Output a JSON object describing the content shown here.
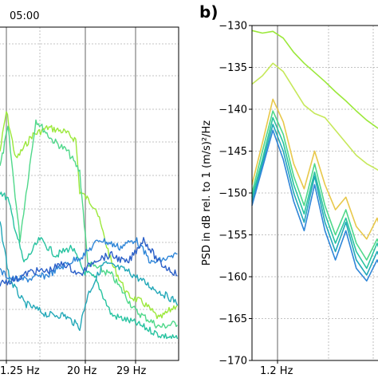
{
  "chart_data": [
    {
      "panel": "a",
      "type": "line",
      "title": "05:00",
      "xlabel": "",
      "ylabel": "",
      "x_tick_labels": [
        "1.25 Hz",
        "20 Hz",
        "29 Hz"
      ],
      "x_vlines": [
        "1.25 Hz",
        "20 Hz",
        "29 Hz"
      ],
      "grid": true,
      "series_colors": [
        "#9be83a",
        "#4fd88a",
        "#27c3a0",
        "#22a8b8",
        "#2f86d8",
        "#2a5fc8"
      ]
    },
    {
      "panel": "b",
      "type": "line",
      "title": "",
      "panel_label": "b)",
      "xlabel": "",
      "ylabel": "PSD in dB rel. to 1 (m/s)²/Hz",
      "ylim": [
        -170,
        -130
      ],
      "y_ticks": [
        -130,
        -135,
        -140,
        -145,
        -150,
        -155,
        -160,
        -165,
        -170
      ],
      "x_tick_labels": [
        "1.2 Hz"
      ],
      "x_vlines": [
        "1.2 Hz"
      ],
      "grid": true,
      "series": [
        {
          "color": "#9be83a",
          "values": [
            -130.6,
            -130.9,
            -130.7,
            -131.5,
            -133.2,
            -134.5,
            -135.6,
            -136.7,
            -137.9,
            -139.0,
            -140.2,
            -141.3,
            -142.2,
            -143.0
          ]
        },
        {
          "color": "#c6e85a",
          "values": [
            -137.0,
            -136.0,
            -134.5,
            -135.5,
            -137.5,
            -139.5,
            -140.5,
            -141.0,
            -142.5,
            -144.0,
            -145.5,
            -146.5,
            -147.2,
            -148.0
          ]
        },
        {
          "color": "#e8c84a",
          "values": [
            -149.0,
            -144.0,
            -138.8,
            -141.5,
            -146.5,
            -149.5,
            -145.0,
            -149.0,
            -152.0,
            -150.5,
            -154.0,
            -155.5,
            -153.0,
            -157.0
          ]
        },
        {
          "color": "#4fd88a",
          "values": [
            -150.0,
            -145.0,
            -140.2,
            -143.0,
            -148.0,
            -151.5,
            -146.5,
            -151.5,
            -155.0,
            -152.0,
            -156.0,
            -158.0,
            -155.5,
            -158.5
          ]
        },
        {
          "color": "#27c3a0",
          "values": [
            -150.5,
            -146.0,
            -141.0,
            -144.0,
            -149.0,
            -152.5,
            -147.5,
            -152.5,
            -156.0,
            -153.0,
            -157.0,
            -159.0,
            -156.0,
            -159.5
          ]
        },
        {
          "color": "#22a8b8",
          "values": [
            -151.0,
            -146.5,
            -141.8,
            -145.0,
            -150.0,
            -153.5,
            -148.0,
            -153.5,
            -157.0,
            -153.5,
            -158.0,
            -159.8,
            -157.0,
            -160.0
          ]
        },
        {
          "color": "#2f86d8",
          "values": [
            -151.5,
            -147.0,
            -142.5,
            -146.0,
            -151.0,
            -154.5,
            -149.0,
            -154.5,
            -158.0,
            -154.5,
            -159.0,
            -160.5,
            -158.0,
            -160.8
          ]
        }
      ]
    }
  ]
}
